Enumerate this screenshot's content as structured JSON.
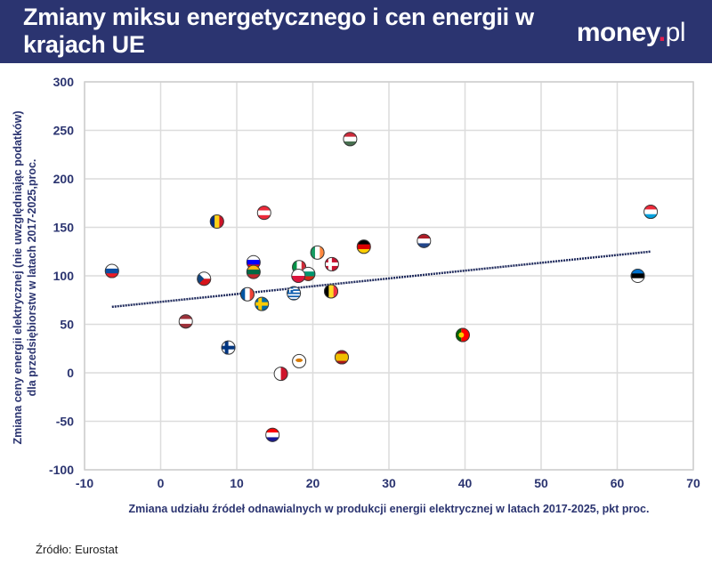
{
  "header": {
    "title": "Zmiany miksu energetycznego i cen energii w krajach UE",
    "logo": {
      "name": "money",
      "dot": ".",
      "suffix": "pl"
    },
    "background": "#2b3470"
  },
  "source": "Źródło: Eurostat",
  "chart_data": {
    "type": "scatter",
    "xlabel": "Zmiana udziału źródeł odnawialnych w produkcji energii elektrycznej w latach 2017-2025, pkt proc.",
    "ylabel_lines": [
      "Zmiana ceny energii elektrycznej (nie uwzględniając podatków)",
      "dla przedsiębiorstw w latach 2017-2025,proc."
    ],
    "xlim": [
      -10,
      70
    ],
    "ylim": [
      -100,
      300
    ],
    "xticks": [
      -10,
      0,
      10,
      20,
      30,
      40,
      50,
      60,
      70
    ],
    "yticks": [
      -100,
      -50,
      0,
      50,
      100,
      150,
      200,
      250,
      300
    ],
    "grid": true,
    "marker": "country-flag",
    "trendline": {
      "x": [
        -6.4,
        64.4
      ],
      "y": [
        68,
        125
      ],
      "color": "#1f2a5c"
    },
    "points": [
      {
        "country": "Słowacja",
        "flag": {
          "dir": "h",
          "colors": [
            "#ffffff",
            "#0b4ea2",
            "#ee1c25"
          ]
        },
        "x": -6.4,
        "y": 105
      },
      {
        "country": "Rumunia",
        "flag": {
          "dir": "v",
          "colors": [
            "#002b7f",
            "#fcd116",
            "#ce1126"
          ]
        },
        "x": 7.4,
        "y": 156
      },
      {
        "country": "Czechy",
        "flag": {
          "dir": "cz",
          "colors": [
            "#ffffff",
            "#d7141a",
            "#11457e"
          ]
        },
        "x": 5.7,
        "y": 97
      },
      {
        "country": "Łotwa",
        "flag": {
          "dir": "h",
          "colors": [
            "#9e3039",
            "#ffffff",
            "#9e3039"
          ]
        },
        "x": 3.3,
        "y": 53
      },
      {
        "country": "Finlandia",
        "flag": {
          "dir": "cross",
          "colors": [
            "#ffffff",
            "#003580"
          ]
        },
        "x": 8.9,
        "y": 26
      },
      {
        "country": "Francja",
        "flag": {
          "dir": "v",
          "colors": [
            "#0055a4",
            "#ffffff",
            "#ef4135"
          ]
        },
        "x": 11.4,
        "y": 81
      },
      {
        "country": "Słowenia",
        "flag": {
          "dir": "h",
          "colors": [
            "#ffffff",
            "#0000ff",
            "#ff0000"
          ]
        },
        "x": 12.2,
        "y": 114
      },
      {
        "country": "Litwa",
        "flag": {
          "dir": "h",
          "colors": [
            "#fdb913",
            "#006a44",
            "#c1272d"
          ]
        },
        "x": 12.2,
        "y": 104
      },
      {
        "country": "Austria",
        "flag": {
          "dir": "h",
          "colors": [
            "#ed2939",
            "#ffffff",
            "#ed2939"
          ]
        },
        "x": 13.6,
        "y": 165
      },
      {
        "country": "Szwecja",
        "flag": {
          "dir": "cross",
          "colors": [
            "#006aa7",
            "#fecc00"
          ]
        },
        "x": 13.3,
        "y": 71
      },
      {
        "country": "Chorwacja",
        "flag": {
          "dir": "h",
          "colors": [
            "#ff0000",
            "#ffffff",
            "#171796"
          ]
        },
        "x": 14.7,
        "y": -64
      },
      {
        "country": "Malta",
        "flag": {
          "dir": "v2",
          "colors": [
            "#ffffff",
            "#cf142b"
          ]
        },
        "x": 15.8,
        "y": -1
      },
      {
        "country": "Grecja",
        "flag": {
          "dir": "gr",
          "colors": [
            "#0d5eaf",
            "#ffffff"
          ]
        },
        "x": 17.5,
        "y": 82
      },
      {
        "country": "Cypr",
        "flag": {
          "dir": "cy",
          "colors": [
            "#ffffff",
            "#d57800"
          ]
        },
        "x": 18.2,
        "y": 12
      },
      {
        "country": "Włochy",
        "flag": {
          "dir": "v",
          "colors": [
            "#009246",
            "#ffffff",
            "#ce2b37"
          ]
        },
        "x": 18.2,
        "y": 109
      },
      {
        "country": "Bułgaria",
        "flag": {
          "dir": "h",
          "colors": [
            "#ffffff",
            "#00966e",
            "#d62612"
          ]
        },
        "x": 19.4,
        "y": 102
      },
      {
        "country": "Polska",
        "flag": {
          "dir": "h2",
          "colors": [
            "#ffffff",
            "#dc143c"
          ]
        },
        "x": 18.1,
        "y": 100
      },
      {
        "country": "Irlandia",
        "flag": {
          "dir": "v",
          "colors": [
            "#169b62",
            "#ffffff",
            "#ff883e"
          ]
        },
        "x": 20.6,
        "y": 124
      },
      {
        "country": "Dania",
        "flag": {
          "dir": "cross",
          "colors": [
            "#c8102e",
            "#ffffff"
          ]
        },
        "x": 22.5,
        "y": 112
      },
      {
        "country": "Belgia",
        "flag": {
          "dir": "v",
          "colors": [
            "#000000",
            "#fdda24",
            "#ef3340"
          ]
        },
        "x": 22.4,
        "y": 84
      },
      {
        "country": "Hiszpania",
        "flag": {
          "dir": "es",
          "colors": [
            "#aa151b",
            "#f1bf00",
            "#aa151b"
          ]
        },
        "x": 23.8,
        "y": 16
      },
      {
        "country": "Węgry",
        "flag": {
          "dir": "h",
          "colors": [
            "#ce2939",
            "#ffffff",
            "#477050"
          ]
        },
        "x": 24.9,
        "y": 241
      },
      {
        "country": "Niemcy",
        "flag": {
          "dir": "h",
          "colors": [
            "#000000",
            "#dd0000",
            "#ffce00"
          ]
        },
        "x": 26.7,
        "y": 130
      },
      {
        "country": "Holandia",
        "flag": {
          "dir": "h",
          "colors": [
            "#ae1c28",
            "#ffffff",
            "#21468b"
          ]
        },
        "x": 34.6,
        "y": 136
      },
      {
        "country": "Portugalia",
        "flag": {
          "dir": "pt",
          "colors": [
            "#006600",
            "#ff0000"
          ]
        },
        "x": 39.7,
        "y": 39
      },
      {
        "country": "Estonia",
        "flag": {
          "dir": "h",
          "colors": [
            "#0072ce",
            "#000000",
            "#ffffff"
          ]
        },
        "x": 62.7,
        "y": 100
      },
      {
        "country": "Luksemburg",
        "flag": {
          "dir": "h",
          "colors": [
            "#ed2939",
            "#ffffff",
            "#00a1de"
          ]
        },
        "x": 64.4,
        "y": 166
      }
    ]
  }
}
